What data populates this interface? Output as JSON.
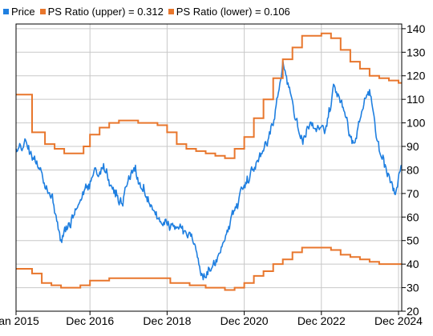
{
  "chart_data": {
    "type": "line",
    "title": "",
    "xlabel": "",
    "ylabel": "",
    "x_tick_labels": [
      "Jan 2015",
      "Dec 2016",
      "Dec 2018",
      "Dec 2020",
      "Dec 2022",
      "Dec 2024"
    ],
    "x_ticks": [
      "2015-01",
      "2016-12",
      "2018-12",
      "2020-12",
      "2022-12",
      "2024-12"
    ],
    "x_range": [
      "2015-01",
      "2025-01"
    ],
    "y_ticks": [
      20,
      30,
      40,
      50,
      60,
      70,
      80,
      90,
      100,
      110,
      120,
      130,
      140
    ],
    "ylim": [
      20,
      142
    ],
    "y_axis_position": "right",
    "grid": true,
    "legend_position": "top-left",
    "series": [
      {
        "name": "Price",
        "color": "#1f7fe0",
        "style": "noisy",
        "points": [
          [
            "2015-01",
            89
          ],
          [
            "2015-04",
            91
          ],
          [
            "2015-07",
            84
          ],
          [
            "2015-10",
            76
          ],
          [
            "2016-01",
            65
          ],
          [
            "2016-03",
            51
          ],
          [
            "2016-06",
            58
          ],
          [
            "2016-10",
            70
          ],
          [
            "2017-01",
            77
          ],
          [
            "2017-04",
            82
          ],
          [
            "2017-07",
            72
          ],
          [
            "2017-10",
            66
          ],
          [
            "2018-01",
            81
          ],
          [
            "2018-04",
            74
          ],
          [
            "2018-07",
            65
          ],
          [
            "2018-10",
            59
          ],
          [
            "2019-01",
            57
          ],
          [
            "2019-05",
            55
          ],
          [
            "2019-09",
            47
          ],
          [
            "2019-11",
            33
          ],
          [
            "2020-03",
            40
          ],
          [
            "2020-06",
            52
          ],
          [
            "2020-09",
            63
          ],
          [
            "2020-12",
            73
          ],
          [
            "2021-03",
            80
          ],
          [
            "2021-06",
            88
          ],
          [
            "2021-09",
            100
          ],
          [
            "2021-12",
            125
          ],
          [
            "2022-03",
            108
          ],
          [
            "2022-06",
            90
          ],
          [
            "2022-09",
            100
          ],
          [
            "2023-01",
            95
          ],
          [
            "2023-04",
            115
          ],
          [
            "2023-07",
            105
          ],
          [
            "2023-10",
            90
          ],
          [
            "2024-01",
            108
          ],
          [
            "2024-03",
            113
          ],
          [
            "2024-06",
            88
          ],
          [
            "2024-09",
            75
          ],
          [
            "2024-11",
            71
          ],
          [
            "2025-01",
            82
          ]
        ]
      },
      {
        "name": "PS Ratio (upper) = 0.312",
        "color": "#e8762c",
        "style": "step",
        "points": [
          [
            "2015-01",
            112
          ],
          [
            "2015-06",
            96
          ],
          [
            "2015-10",
            91
          ],
          [
            "2016-01",
            89
          ],
          [
            "2016-04",
            87
          ],
          [
            "2016-10",
            90
          ],
          [
            "2016-12",
            95
          ],
          [
            "2017-03",
            98
          ],
          [
            "2017-06",
            100
          ],
          [
            "2017-09",
            101
          ],
          [
            "2018-03",
            100
          ],
          [
            "2018-09",
            99
          ],
          [
            "2018-12",
            96
          ],
          [
            "2019-03",
            91
          ],
          [
            "2019-06",
            89
          ],
          [
            "2019-09",
            88
          ],
          [
            "2019-12",
            87
          ],
          [
            "2020-03",
            86
          ],
          [
            "2020-06",
            85
          ],
          [
            "2020-09",
            89
          ],
          [
            "2020-12",
            94
          ],
          [
            "2021-03",
            102
          ],
          [
            "2021-06",
            110
          ],
          [
            "2021-09",
            119
          ],
          [
            "2021-12",
            127
          ],
          [
            "2022-03",
            132
          ],
          [
            "2022-06",
            137
          ],
          [
            "2022-12",
            138
          ],
          [
            "2023-03",
            136
          ],
          [
            "2023-06",
            131
          ],
          [
            "2023-09",
            126
          ],
          [
            "2023-12",
            123
          ],
          [
            "2024-03",
            120
          ],
          [
            "2024-06",
            119
          ],
          [
            "2024-09",
            118
          ],
          [
            "2024-12",
            117
          ],
          [
            "2025-01",
            117
          ]
        ]
      },
      {
        "name": "PS Ratio (lower) = 0.106",
        "color": "#e8762c",
        "style": "step",
        "points": [
          [
            "2015-01",
            38
          ],
          [
            "2015-06",
            36
          ],
          [
            "2015-09",
            32
          ],
          [
            "2015-12",
            31
          ],
          [
            "2016-03",
            30
          ],
          [
            "2016-09",
            31
          ],
          [
            "2016-12",
            33
          ],
          [
            "2017-06",
            34
          ],
          [
            "2018-09",
            34
          ],
          [
            "2019-01",
            32
          ],
          [
            "2019-07",
            31
          ],
          [
            "2019-12",
            30
          ],
          [
            "2020-06",
            29
          ],
          [
            "2020-09",
            30
          ],
          [
            "2020-12",
            32
          ],
          [
            "2021-03",
            35
          ],
          [
            "2021-06",
            37
          ],
          [
            "2021-09",
            40
          ],
          [
            "2021-12",
            42
          ],
          [
            "2022-03",
            45
          ],
          [
            "2022-06",
            47
          ],
          [
            "2022-12",
            47
          ],
          [
            "2023-03",
            46
          ],
          [
            "2023-06",
            44
          ],
          [
            "2023-09",
            43
          ],
          [
            "2023-12",
            42
          ],
          [
            "2024-03",
            41
          ],
          [
            "2024-06",
            40
          ],
          [
            "2025-01",
            40
          ]
        ]
      }
    ]
  }
}
